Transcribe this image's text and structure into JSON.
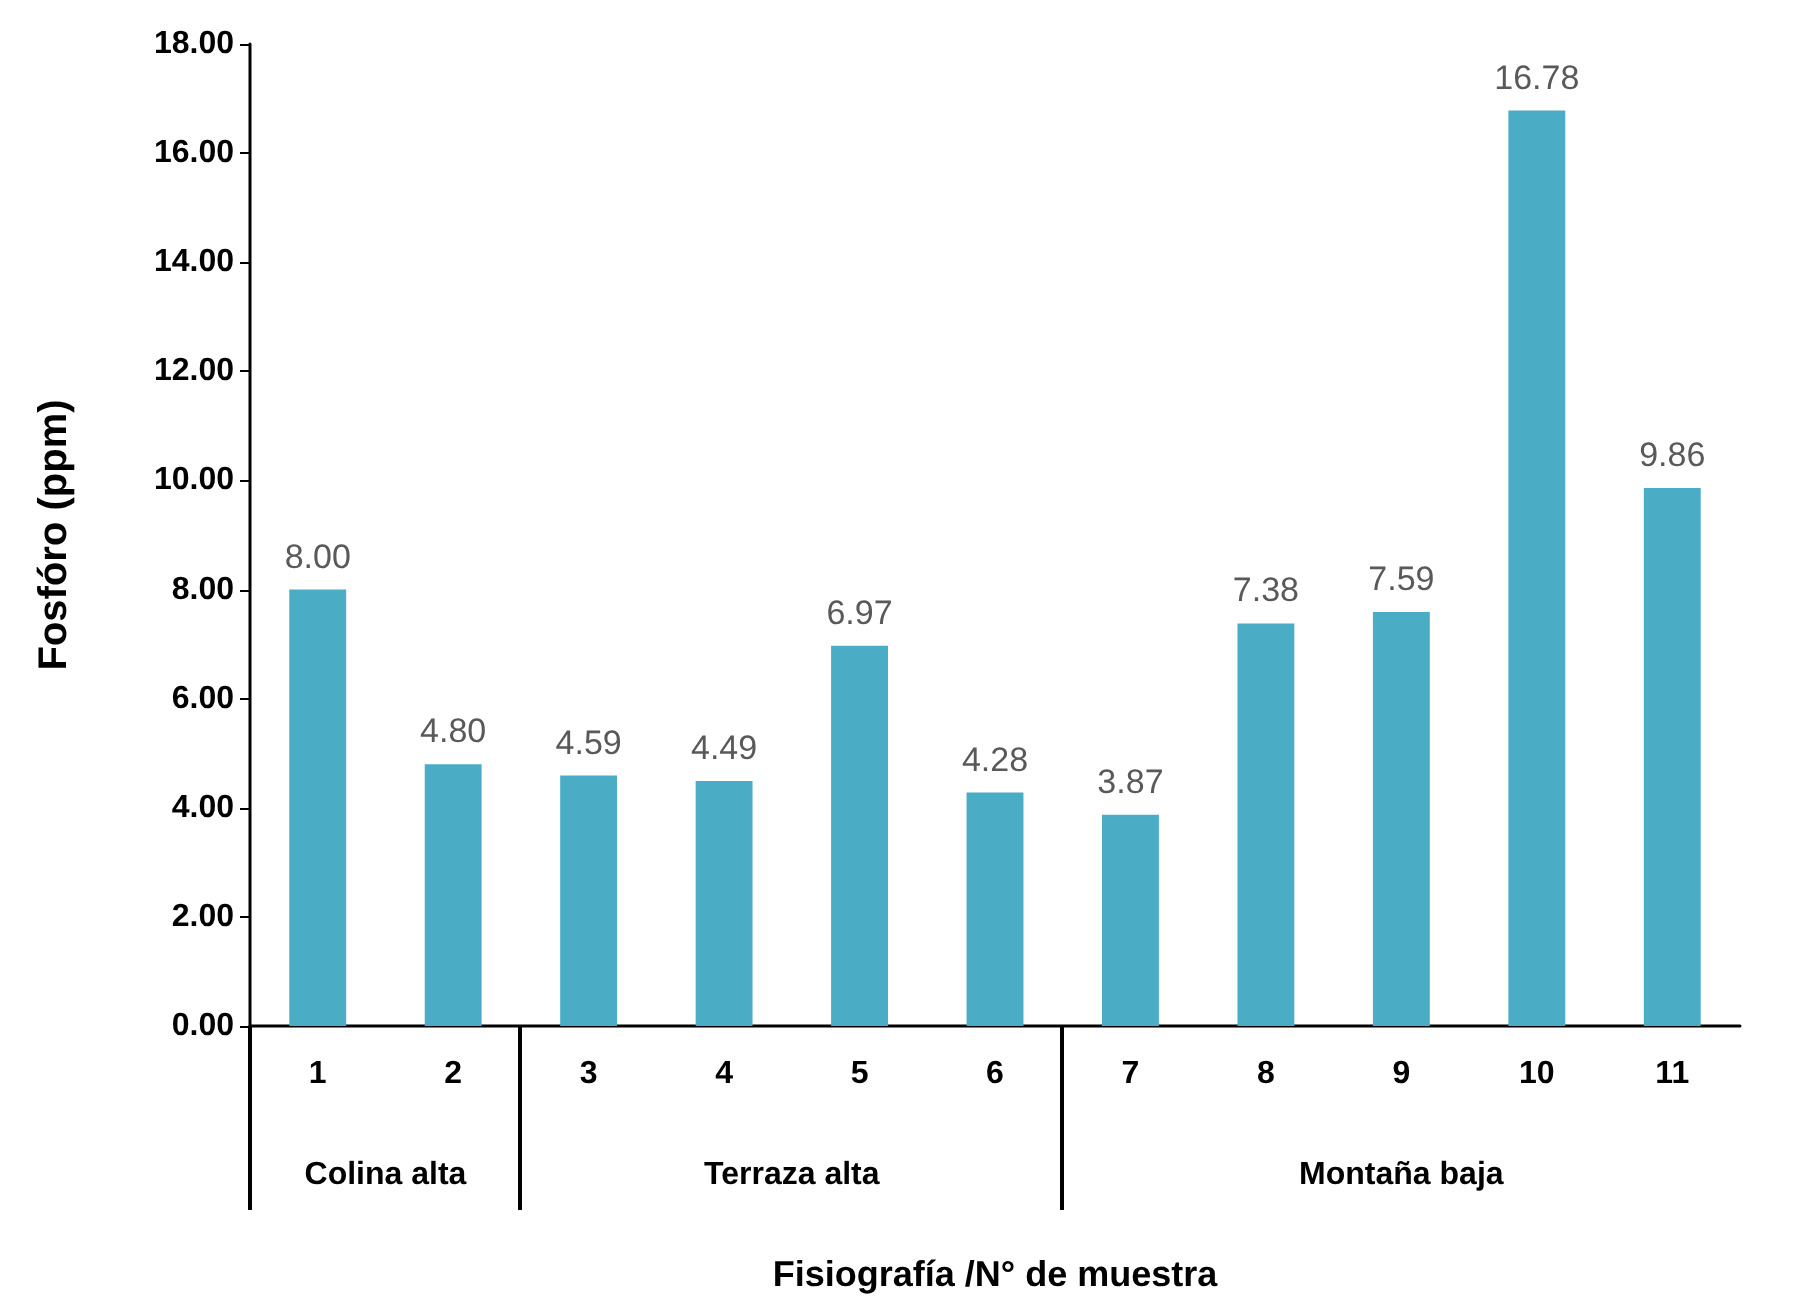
{
  "chart_data": {
    "type": "bar",
    "ylabel": "Fosfóro (ppm)",
    "xlabel": "Fisiografía /N° de muestra",
    "categories": [
      "1",
      "2",
      "3",
      "4",
      "5",
      "6",
      "7",
      "8",
      "9",
      "10",
      "11"
    ],
    "values": [
      8.0,
      4.8,
      4.59,
      4.49,
      6.97,
      4.28,
      3.87,
      7.38,
      7.59,
      16.78,
      9.86
    ],
    "value_labels": [
      "8.00",
      "4.80",
      "4.59",
      "4.49",
      "6.97",
      "4.28",
      "3.87",
      "7.38",
      "7.59",
      "16.78",
      "9.86"
    ],
    "color": "#4bacc6",
    "ylim": [
      0,
      18
    ],
    "yticks": [
      {
        "value": 0,
        "label": "0.00"
      },
      {
        "value": 2,
        "label": "2.00"
      },
      {
        "value": 4,
        "label": "4.00"
      },
      {
        "value": 6,
        "label": "6.00"
      },
      {
        "value": 8,
        "label": "8.00"
      },
      {
        "value": 10,
        "label": "10.00"
      },
      {
        "value": 12,
        "label": "12.00"
      },
      {
        "value": 14,
        "label": "14.00"
      },
      {
        "value": 16,
        "label": "16.00"
      },
      {
        "value": 18,
        "label": "18.00"
      }
    ],
    "grid": false,
    "annotations": [
      "Colina alta",
      "Terraza alta",
      "Montaña baja"
    ]
  }
}
